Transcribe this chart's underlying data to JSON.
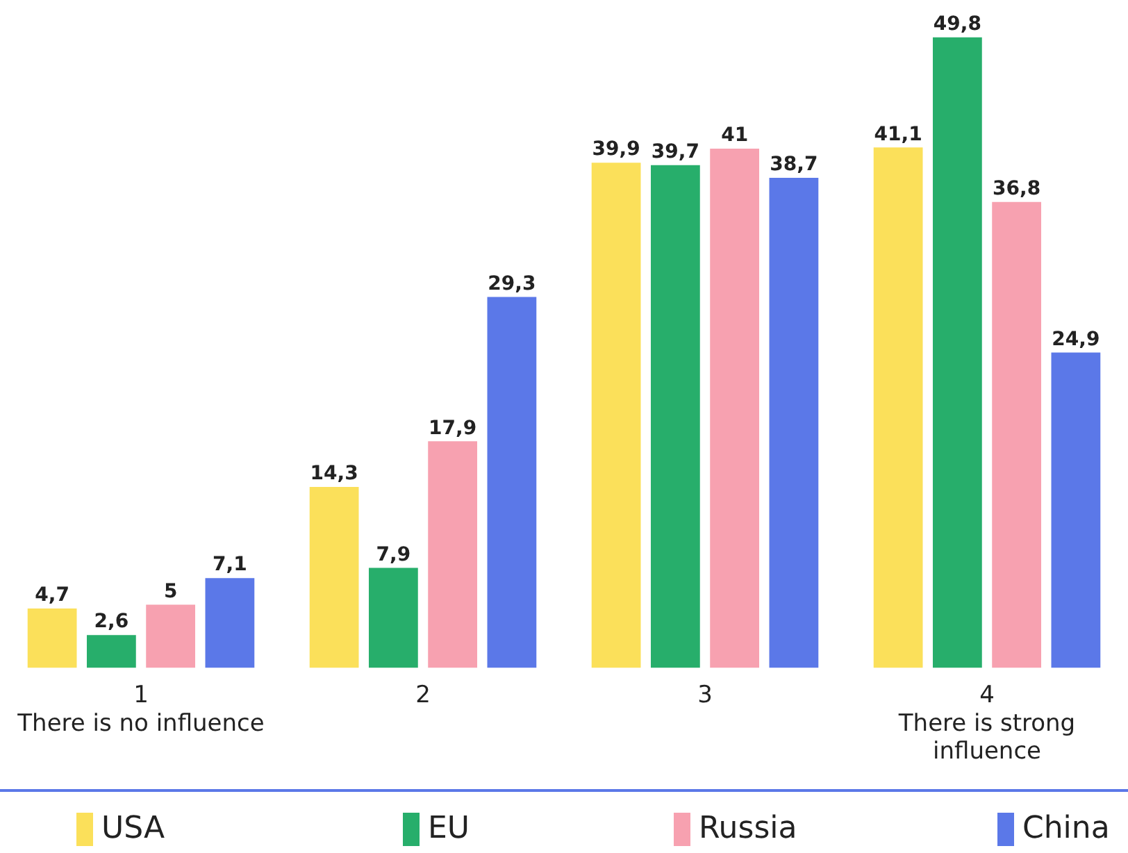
{
  "chart_data": {
    "type": "bar",
    "categories": [
      "1\nThere is no influence",
      "2",
      "3",
      "4\nThere is strong\ninfluence"
    ],
    "series": [
      {
        "name": "USA",
        "color": "#fbe05a",
        "values": [
          4.7,
          14.3,
          39.9,
          41.1
        ],
        "value_labels": [
          "4,7",
          "14,3",
          "39,9",
          "41,1"
        ]
      },
      {
        "name": "EU",
        "color": "#27ae6b",
        "values": [
          2.6,
          7.9,
          39.7,
          49.8
        ],
        "value_labels": [
          "2,6",
          "7,9",
          "39,7",
          "49,8"
        ]
      },
      {
        "name": "Russia",
        "color": "#f7a1b0",
        "values": [
          5,
          17.9,
          41,
          36.8
        ],
        "value_labels": [
          "5",
          "17,9",
          "41",
          "36,8"
        ]
      },
      {
        "name": "China",
        "color": "#5b78e8",
        "values": [
          7.1,
          29.3,
          38.7,
          24.9
        ],
        "value_labels": [
          "7,1",
          "29,3",
          "38,7",
          "24,9"
        ]
      }
    ],
    "ylim": [
      0,
      50
    ],
    "tick_labels": "x",
    "grid": false,
    "legend": "bottom"
  }
}
